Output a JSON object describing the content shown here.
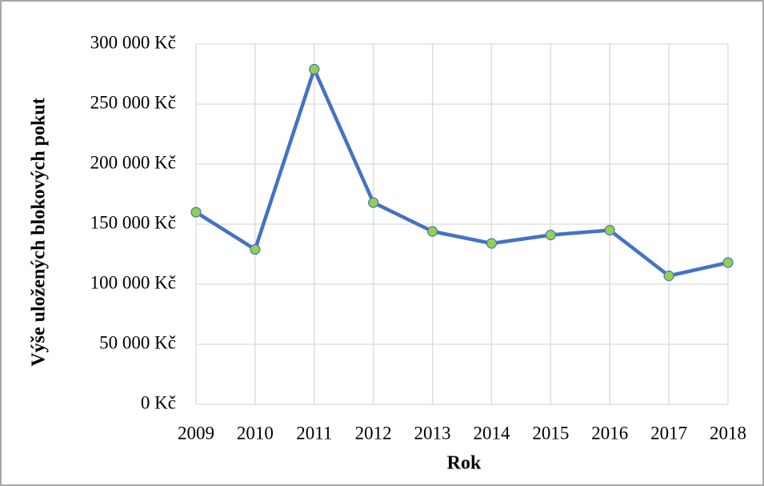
{
  "chart_data": {
    "type": "line",
    "y_axis_label": "Výše uložených blokových pokut",
    "x_axis_label": "Rok",
    "categories": [
      "2009",
      "2010",
      "2011",
      "2012",
      "2013",
      "2014",
      "2015",
      "2016",
      "2017",
      "2018"
    ],
    "values": [
      160000,
      129000,
      279000,
      168000,
      144000,
      134000,
      141000,
      145000,
      107000,
      118000
    ],
    "color": "#4472c4",
    "marker_color": "#92d050",
    "ylim": [
      0,
      300000
    ],
    "yticks": [
      {
        "value": 0,
        "label": "0 Kč"
      },
      {
        "value": 50000,
        "label": "50 000 Kč"
      },
      {
        "value": 100000,
        "label": "100 000 Kč"
      },
      {
        "value": 150000,
        "label": "150 000 Kč"
      },
      {
        "value": 200000,
        "label": "200 000 Kč"
      },
      {
        "value": 250000,
        "label": "250 000 Kč"
      },
      {
        "value": 300000,
        "label": "300 000 Kč"
      }
    ],
    "grid": true
  }
}
